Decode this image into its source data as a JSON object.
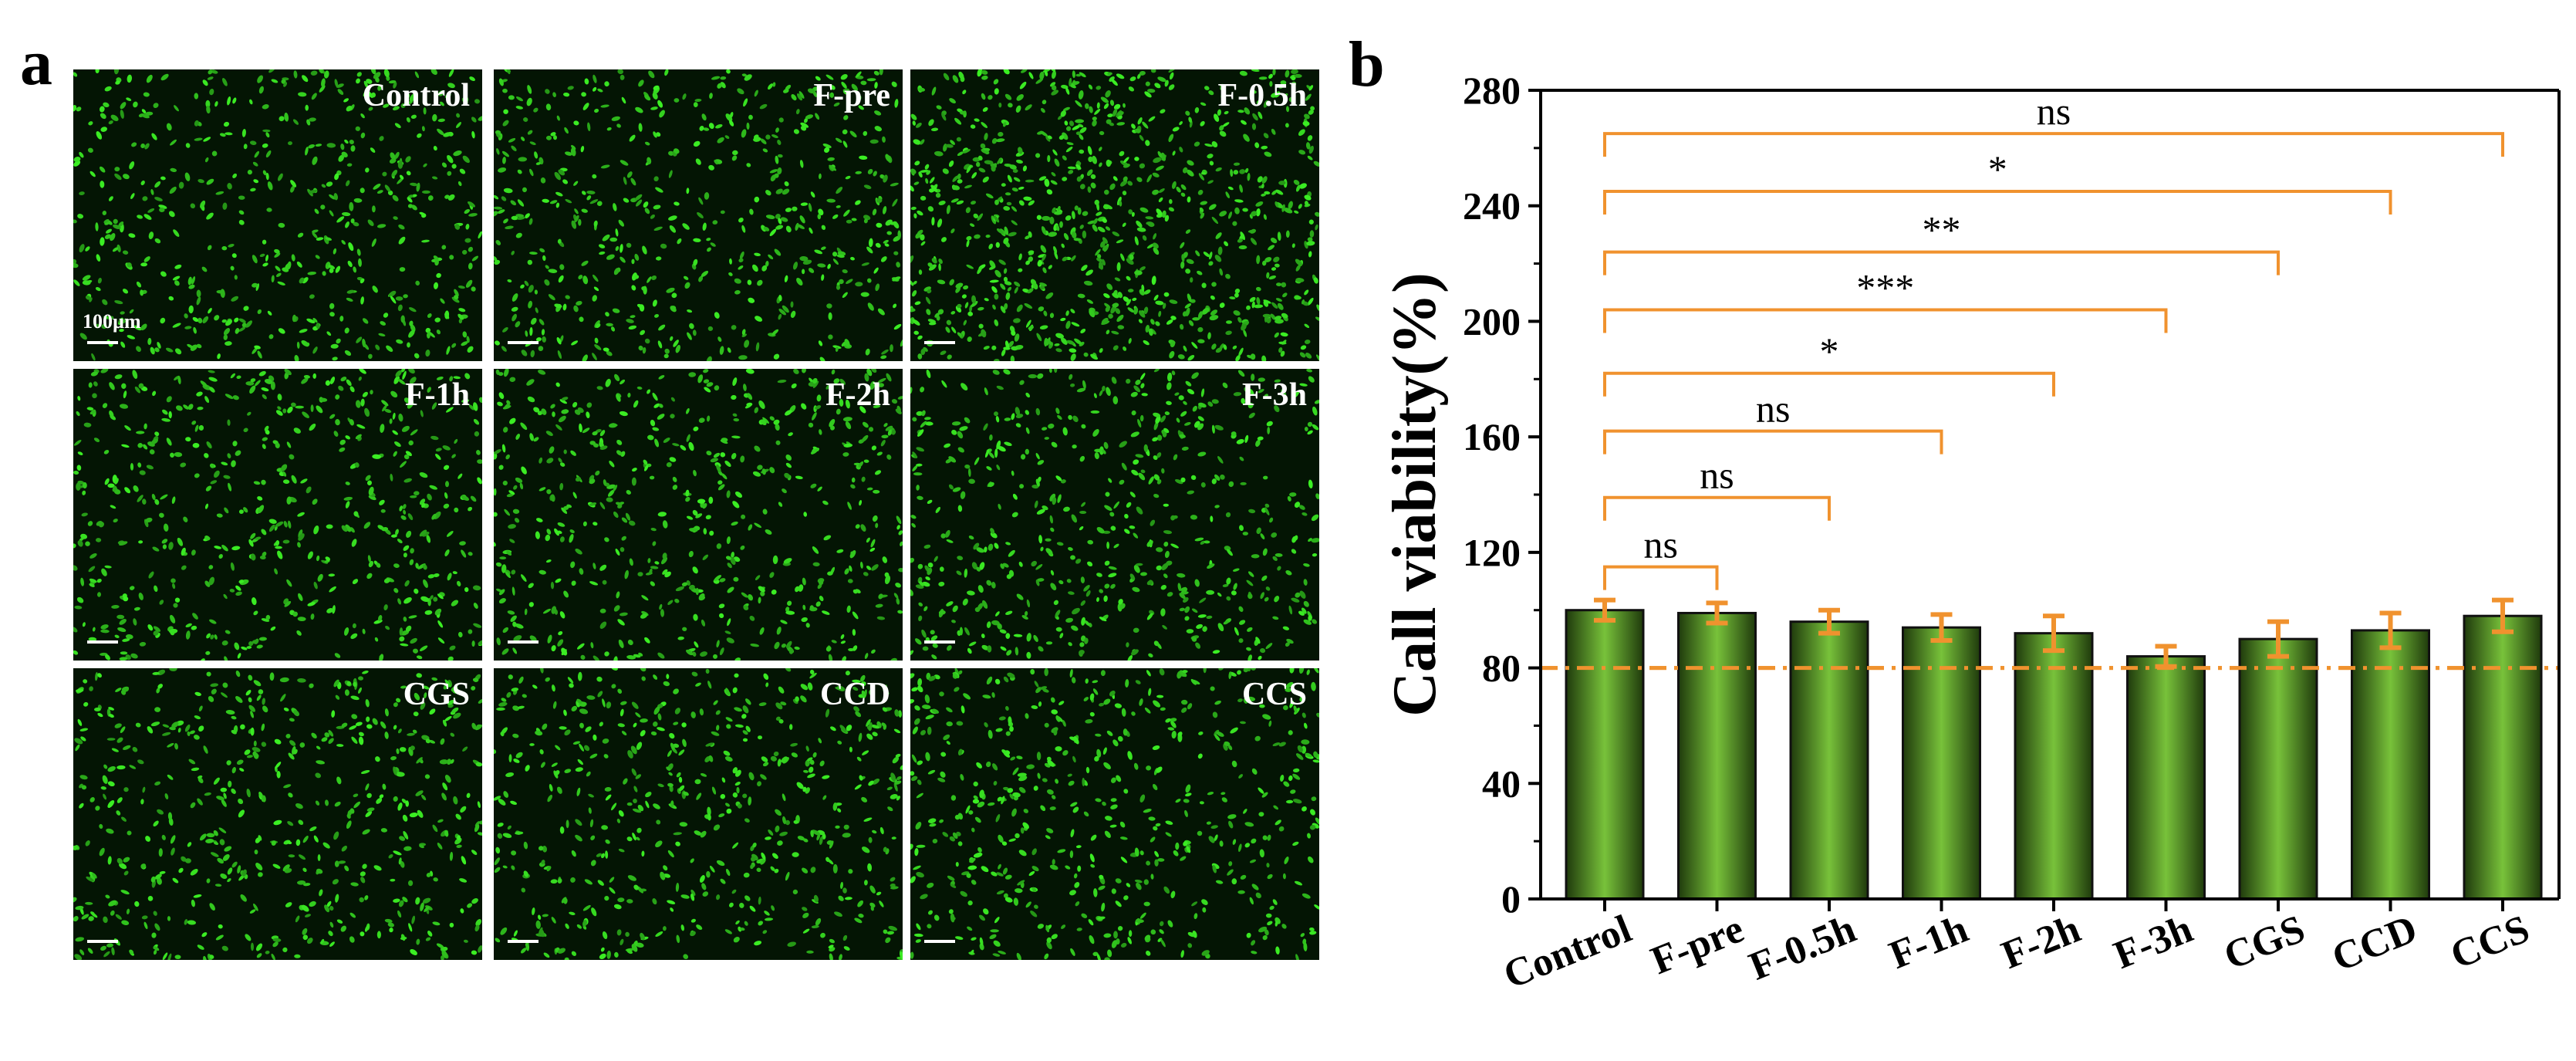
{
  "panel_a": {
    "letter": "a",
    "scale_label": "100µm",
    "tiles": [
      "Control",
      "F-pre",
      "F-0.5h",
      "F-1h",
      "F-2h",
      "F-3h",
      "CGS",
      "CCD",
      "CCS"
    ]
  },
  "panel_b": {
    "letter": "b"
  },
  "chart_data": {
    "type": "bar",
    "title": "",
    "xlabel": "",
    "ylabel": "Call viability(%)",
    "categories": [
      "Control",
      "F-pre",
      "F-0.5h",
      "F-1h",
      "F-2h",
      "F-3h",
      "CGS",
      "CCD",
      "CCS"
    ],
    "values": [
      100,
      99,
      96,
      94,
      92,
      84,
      90,
      93,
      98
    ],
    "errors": [
      3.5,
      3.5,
      4,
      4.5,
      6,
      3.5,
      6,
      6,
      5.5
    ],
    "ylim": [
      0,
      280
    ],
    "yticks": [
      0,
      40,
      80,
      120,
      160,
      200,
      240,
      280
    ],
    "reference_line": 80,
    "significance": [
      {
        "from": "Control",
        "to": "F-pre",
        "label": "ns",
        "y": 115
      },
      {
        "from": "Control",
        "to": "F-0.5h",
        "label": "ns",
        "y": 139
      },
      {
        "from": "Control",
        "to": "F-1h",
        "label": "ns",
        "y": 162
      },
      {
        "from": "Control",
        "to": "F-2h",
        "label": "*",
        "y": 182
      },
      {
        "from": "Control",
        "to": "F-3h",
        "label": "***",
        "y": 204
      },
      {
        "from": "Control",
        "to": "CGS",
        "label": "**",
        "y": 224
      },
      {
        "from": "Control",
        "to": "CCD",
        "label": "*",
        "y": 245
      },
      {
        "from": "Control",
        "to": "CCS",
        "label": "ns",
        "y": 265
      }
    ],
    "colors": {
      "bar_light": "#78c23a",
      "bar_dark": "#1f3a0c",
      "error": "#f0922e",
      "bracket": "#f0922e",
      "reference": "#f0922e"
    }
  }
}
